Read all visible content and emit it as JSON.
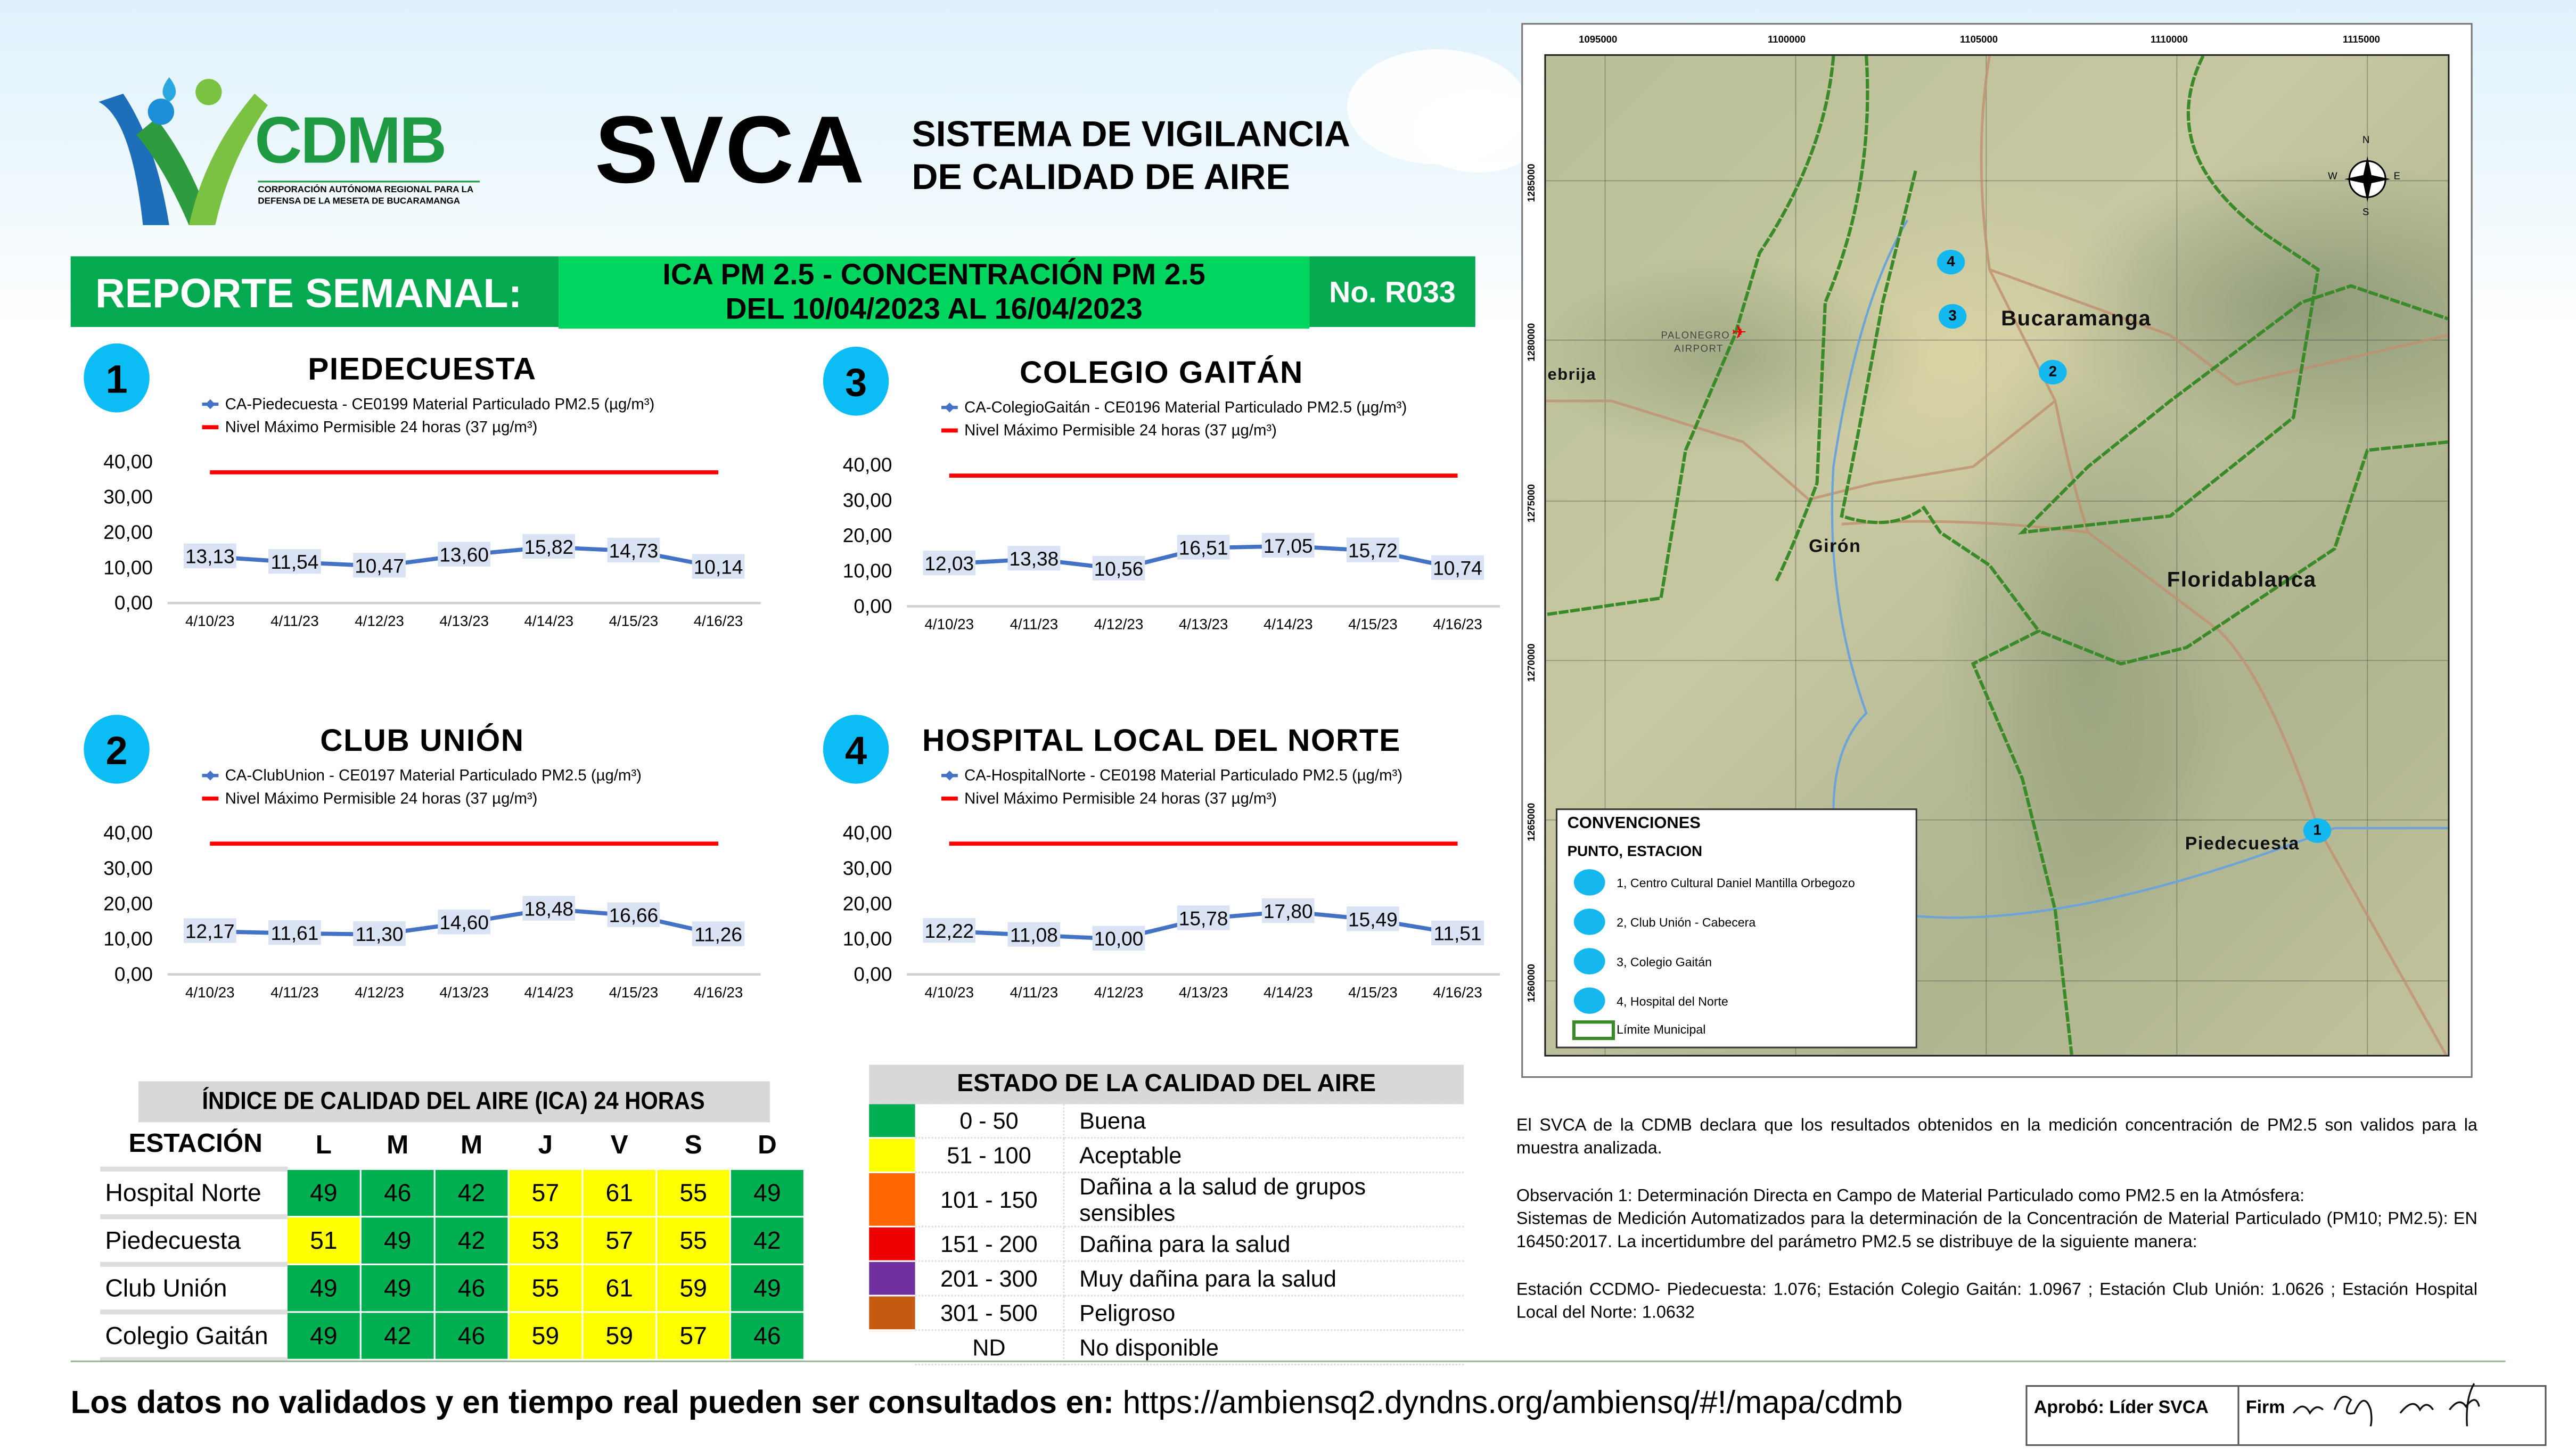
{
  "header": {
    "logo": {
      "brand": "CDMB",
      "tagline": "CORPORACIÓN AUTÓNOMA REGIONAL PARA LA DEFENSA DE LA MESETA DE BUCARAMANGA"
    },
    "title": "SVCA",
    "subtitle_line1": "SISTEMA DE VIGILANCIA",
    "subtitle_line2": "DE CALIDAD DE AIRE"
  },
  "report_bar": {
    "label": "REPORTE SEMANAL:",
    "line1": "ICA PM 2.5 - CONCENTRACIÓN PM 2.5",
    "line2": "DEL 10/04/2023 AL 16/04/2023",
    "number": "No. R033",
    "colors": {
      "dark": "#05a94f",
      "bright": "#00d65f"
    }
  },
  "chart_data": [
    {
      "type": "line",
      "badge": "1",
      "title": "PIEDECUESTA",
      "categories": [
        "4/10/23",
        "4/11/23",
        "4/12/23",
        "4/13/23",
        "4/14/23",
        "4/15/23",
        "4/16/23"
      ],
      "series": [
        {
          "name": "CA-Piedecuesta - CE0199 Material Particulado PM2.5 (µg/m³)",
          "values": [
            13.13,
            11.54,
            10.47,
            13.6,
            15.82,
            14.73,
            10.14
          ],
          "labels": [
            "13,13",
            "11,54",
            "10,47",
            "13,60",
            "15,82",
            "14,73",
            "10,14"
          ],
          "color": "#4472c4"
        },
        {
          "name": "Nivel Máximo Permisible 24 horas (37 µg/m³)",
          "values": [
            37,
            37,
            37,
            37,
            37,
            37,
            37
          ],
          "color": "#ff0000"
        }
      ],
      "yticks": [
        "0,00",
        "10,00",
        "20,00",
        "30,00",
        "40,00"
      ],
      "ylim": [
        0,
        40
      ],
      "grid": false,
      "legend": "top"
    },
    {
      "type": "line",
      "badge": "2",
      "title": "CLUB UNIÓN",
      "categories": [
        "4/10/23",
        "4/11/23",
        "4/12/23",
        "4/13/23",
        "4/14/23",
        "4/15/23",
        "4/16/23"
      ],
      "series": [
        {
          "name": "CA-ClubUnion - CE0197 Material Particulado PM2.5 (µg/m³)",
          "values": [
            12.17,
            11.61,
            11.3,
            14.6,
            18.48,
            16.66,
            11.26
          ],
          "labels": [
            "12,17",
            "11,61",
            "11,30",
            "14,60",
            "18,48",
            "16,66",
            "11,26"
          ],
          "color": "#4472c4"
        },
        {
          "name": "Nivel Máximo Permisible 24 horas (37 µg/m³)",
          "values": [
            37,
            37,
            37,
            37,
            37,
            37,
            37
          ],
          "color": "#ff0000"
        }
      ],
      "yticks": [
        "0,00",
        "10,00",
        "20,00",
        "30,00",
        "40,00"
      ],
      "ylim": [
        0,
        40
      ],
      "grid": false,
      "legend": "top"
    },
    {
      "type": "line",
      "badge": "3",
      "title": "COLEGIO GAITÁN",
      "categories": [
        "4/10/23",
        "4/11/23",
        "4/12/23",
        "4/13/23",
        "4/14/23",
        "4/15/23",
        "4/16/23"
      ],
      "series": [
        {
          "name": "CA-ColegioGaitán - CE0196 Material Particulado PM2.5 (µg/m³)",
          "values": [
            12.03,
            13.38,
            10.56,
            16.51,
            17.05,
            15.72,
            10.74
          ],
          "labels": [
            "12,03",
            "13,38",
            "10,56",
            "16,51",
            "17,05",
            "15,72",
            "10,74"
          ],
          "color": "#4472c4"
        },
        {
          "name": "Nivel Máximo Permisible 24 horas (37 µg/m³)",
          "values": [
            37,
            37,
            37,
            37,
            37,
            37,
            37
          ],
          "color": "#ff0000"
        }
      ],
      "yticks": [
        "0,00",
        "10,00",
        "20,00",
        "30,00",
        "40,00"
      ],
      "ylim": [
        0,
        40
      ],
      "grid": false,
      "legend": "top"
    },
    {
      "type": "line",
      "badge": "4",
      "title": "HOSPITAL LOCAL DEL NORTE",
      "categories": [
        "4/10/23",
        "4/11/23",
        "4/12/23",
        "4/13/23",
        "4/14/23",
        "4/15/23",
        "4/16/23"
      ],
      "series": [
        {
          "name": "CA-HospitalNorte - CE0198 Material Particulado PM2.5 (µg/m³)",
          "values": [
            12.22,
            11.08,
            10.0,
            15.78,
            17.8,
            15.49,
            11.51
          ],
          "labels": [
            "12,22",
            "11,08",
            "10,00",
            "15,78",
            "17,80",
            "15,49",
            "11,51"
          ],
          "color": "#4472c4"
        },
        {
          "name": "Nivel Máximo Permisible 24 horas (37 µg/m³)",
          "values": [
            37,
            37,
            37,
            37,
            37,
            37,
            37
          ],
          "color": "#ff0000"
        }
      ],
      "yticks": [
        "0,00",
        "10,00",
        "20,00",
        "30,00",
        "40,00"
      ],
      "ylim": [
        0,
        40
      ],
      "grid": false,
      "legend": "top"
    }
  ],
  "ica_table": {
    "title": "ÍNDICE DE CALIDAD DEL AIRE (ICA) 24 HORAS",
    "columns": [
      "ESTACIÓN",
      "L",
      "M",
      "M",
      "J",
      "V",
      "S",
      "D"
    ],
    "rows": [
      {
        "station": "Hospital Norte",
        "values": [
          "49",
          "46",
          "42",
          "57",
          "61",
          "55",
          "49"
        ],
        "levels": [
          "g",
          "g",
          "g",
          "y",
          "y",
          "y",
          "g"
        ]
      },
      {
        "station": "Piedecuesta",
        "values": [
          "51",
          "49",
          "42",
          "53",
          "57",
          "55",
          "42"
        ],
        "levels": [
          "y",
          "g",
          "g",
          "y",
          "y",
          "y",
          "g"
        ]
      },
      {
        "station": "Club Unión",
        "values": [
          "49",
          "49",
          "46",
          "55",
          "61",
          "59",
          "49"
        ],
        "levels": [
          "g",
          "g",
          "g",
          "y",
          "y",
          "y",
          "g"
        ]
      },
      {
        "station": "Colegio Gaitán",
        "values": [
          "49",
          "42",
          "46",
          "59",
          "59",
          "57",
          "46"
        ],
        "levels": [
          "g",
          "g",
          "g",
          "y",
          "y",
          "y",
          "g"
        ]
      }
    ]
  },
  "air_quality_states": {
    "title": "ESTADO DE LA CALIDAD DEL AIRE",
    "rows": [
      {
        "range": "0 - 50",
        "label": "Buena",
        "color": "#00b050"
      },
      {
        "range": "51 - 100",
        "label": "Aceptable",
        "color": "#ffff00"
      },
      {
        "range": "101 - 150",
        "label": "Dañina a la salud de grupos sensibles",
        "color": "#ff6600"
      },
      {
        "range": "151 - 200",
        "label": "Dañina para la salud",
        "color": "#ee0000"
      },
      {
        "range": "201 - 300",
        "label": "Muy dañina para la salud",
        "color": "#7030a0"
      },
      {
        "range": "301 - 500",
        "label": "Peligroso",
        "color": "#c55a11"
      },
      {
        "range": "ND",
        "label": "No disponible",
        "color": ""
      }
    ]
  },
  "map": {
    "x_ticks": [
      "1095000",
      "1100000",
      "1105000",
      "1110000",
      "1115000"
    ],
    "y_ticks": [
      "1285000",
      "1280000",
      "1275000",
      "1270000",
      "1265000",
      "1260000"
    ],
    "places": [
      "Bucaramanga",
      "Girón",
      "Floridablanca",
      "Piedecuesta",
      "ebrija",
      "PALONEGRO",
      "AIRPORT"
    ],
    "markers": [
      "1",
      "2",
      "3",
      "4"
    ],
    "compass": {
      "n": "N",
      "s": "S",
      "e": "E",
      "w": "W"
    },
    "legend": {
      "title": "CONVENCIONES",
      "subtitle": "PUNTO, ESTACION",
      "items": [
        "1, Centro Cultural Daniel Mantilla Orbegozo",
        "2, Club Unión - Cabecera",
        "3, Colegio Gaitán",
        "4, Hospital del Norte"
      ],
      "boundary": "Límite Municipal"
    }
  },
  "notes": {
    "p1": "El SVCA  de la CDMB declara que los resultados obtenidos en la medición concentración de PM2.5 son validos para la muestra  analizada.",
    "p2a": "Observación 1: Determinación Directa en Campo de Material Particulado como PM2.5 en la Atmósfera:",
    "p2b": "Sistemas de Medición Automatizados para la  determinación de la Concentración de Material Particulado (PM10; PM2.5): EN 16450:2017. La incertidumbre del parámetro PM2.5 se distribuye de la siguiente manera:",
    "p3": "Estación CCDMO- Piedecuesta: 1.076; Estación Colegio Gaitán: 1.0967 ; Estación Club Unión: 1.0626 ; Estación Hospital Local del Norte: 1.0632"
  },
  "footer": {
    "lead": "Los datos no validados y en tiempo real pueden ser consultados en:",
    "url": "https://ambiensq2.dyndns.org/ambiensq/#!/mapa/cdmb",
    "approved": "Aprobó: Líder SVCA",
    "signature_label": "Firm"
  }
}
